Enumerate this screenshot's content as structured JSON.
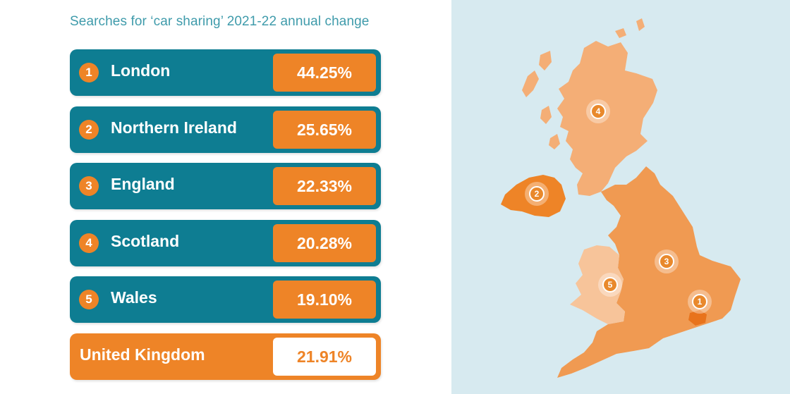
{
  "title": "Searches for ‘car sharing’ 2021-22 annual change",
  "rows": [
    {
      "rank": "1",
      "name": "London",
      "value": "44.25%"
    },
    {
      "rank": "2",
      "name": "Northern Ireland",
      "value": "25.65%"
    },
    {
      "rank": "3",
      "name": "England",
      "value": "22.33%"
    },
    {
      "rank": "4",
      "name": "Scotland",
      "value": "20.28%"
    },
    {
      "rank": "5",
      "name": "Wales",
      "value": "19.10%"
    }
  ],
  "total": {
    "name": "United Kingdom",
    "value": "21.91%"
  },
  "map": {
    "markers": [
      "1",
      "2",
      "3",
      "4",
      "5"
    ]
  },
  "colors": {
    "teal": "#0e7d92",
    "orange": "#ee8427",
    "map_light": "#f4ae76",
    "map_mid": "#f09a52",
    "map_wales": "#f7c49a",
    "sea": "#d7eaf0",
    "title": "#3f9bab"
  },
  "chart_data": {
    "type": "table",
    "title": "Searches for ‘car sharing’ 2021-22 annual change",
    "categories": [
      "London",
      "Northern Ireland",
      "England",
      "Scotland",
      "Wales",
      "United Kingdom"
    ],
    "values": [
      44.25,
      25.65,
      22.33,
      20.28,
      19.1,
      21.91
    ]
  }
}
